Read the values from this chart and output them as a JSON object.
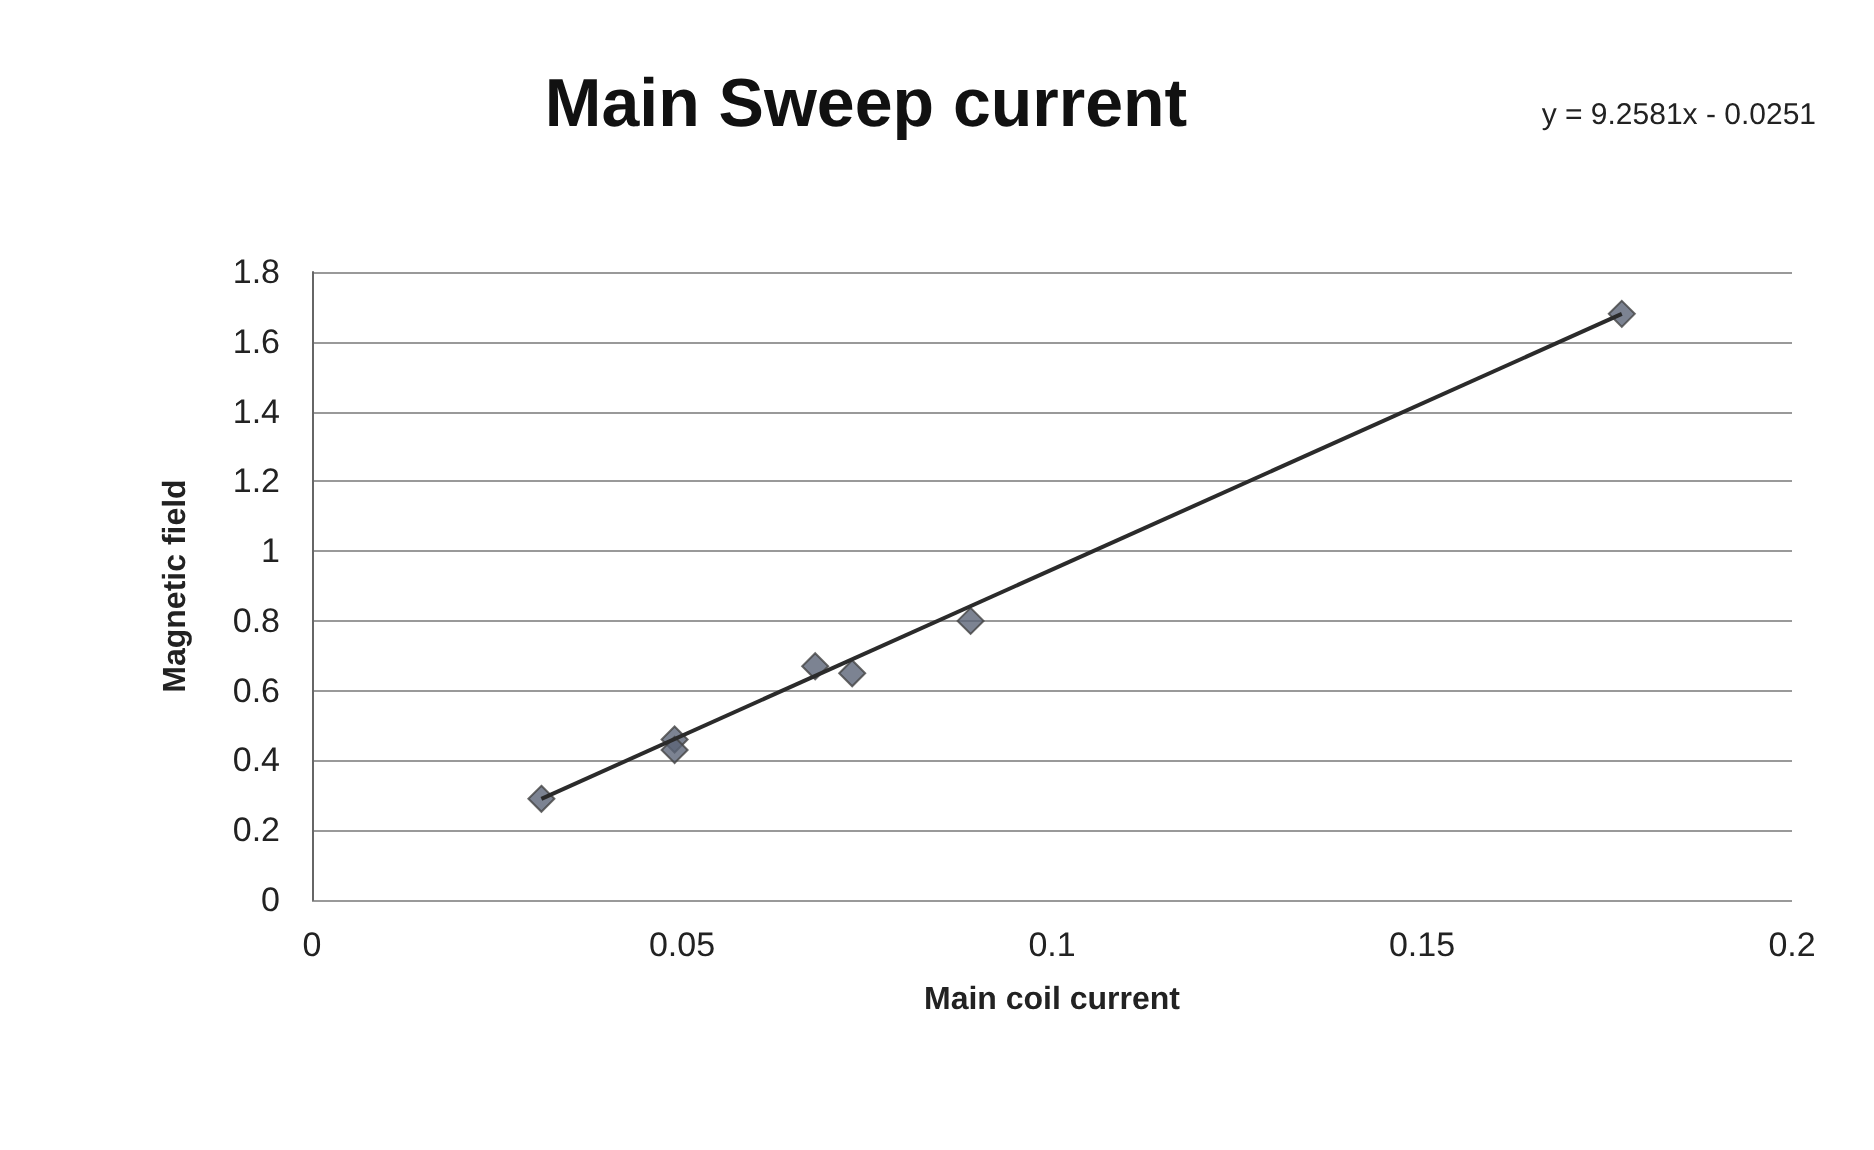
{
  "chart_data": {
    "type": "scatter",
    "title": "Main Sweep current",
    "xlabel": "Main coil current",
    "ylabel": "Magnetic field",
    "annotations": [
      "y = 9.2581x - 0.0251"
    ],
    "xlim": [
      0,
      0.2
    ],
    "xticks": [
      0,
      0.05,
      0.1,
      0.15,
      0.2
    ],
    "ylim": [
      0,
      1.8
    ],
    "yticks": [
      0,
      0.2,
      0.4,
      0.6,
      0.8,
      1,
      1.2,
      1.4,
      1.6,
      1.8
    ],
    "grid": "y",
    "marker": "diamond",
    "series": [
      {
        "color": "#5b6477",
        "x": [
          0.031,
          0.049,
          0.049,
          0.068,
          0.073,
          0.089,
          0.177
        ],
        "values": [
          0.29,
          0.46,
          0.43,
          0.67,
          0.65,
          0.8,
          1.68
        ]
      },
      {
        "type": "line",
        "color": "#2b2b2b",
        "line_style": "solid",
        "marker": "none",
        "x": [
          0.031,
          0.177
        ],
        "values": [
          0.29,
          1.68
        ]
      }
    ]
  }
}
